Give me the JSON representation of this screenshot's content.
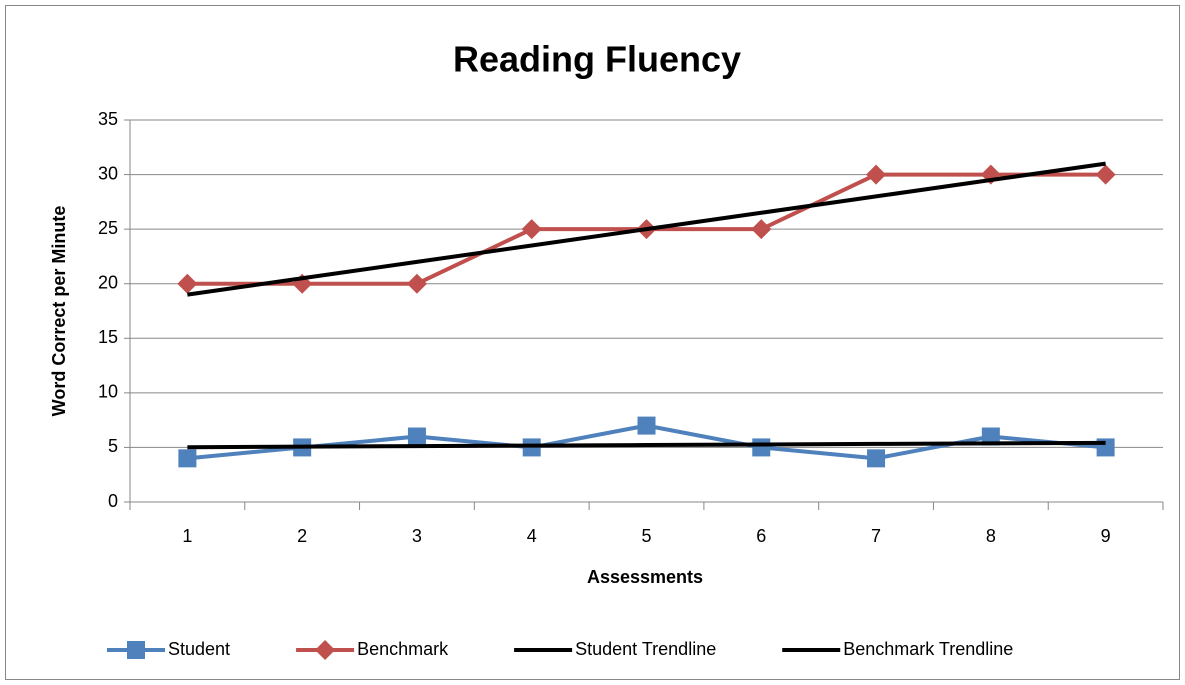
{
  "chart_data": {
    "type": "line",
    "title": "Reading Fluency",
    "x_label": "Assessments",
    "y_label": "Word Correct per Minute",
    "categories": [
      "1",
      "2",
      "3",
      "4",
      "5",
      "6",
      "7",
      "8",
      "9"
    ],
    "series": [
      {
        "name": "Student",
        "color": "#4f81bd",
        "marker": "square",
        "values": [
          4,
          5,
          6,
          5,
          7,
          5,
          4,
          6,
          5
        ]
      },
      {
        "name": "Benchmark",
        "color": "#c0504d",
        "marker": "diamond",
        "values": [
          20,
          20,
          20,
          25,
          25,
          25,
          30,
          30,
          30
        ]
      },
      {
        "name": "Student Trendline",
        "color": "#000000",
        "marker": "none",
        "values": [
          5.02,
          5.07,
          5.12,
          5.17,
          5.22,
          5.27,
          5.32,
          5.37,
          5.42
        ]
      },
      {
        "name": "Benchmark Trendline",
        "color": "#000000",
        "marker": "none",
        "values": [
          19,
          20.5,
          22,
          23.5,
          25,
          26.5,
          28,
          29.5,
          31
        ]
      }
    ],
    "ylim": [
      0,
      35
    ],
    "yticks": [
      0,
      5,
      10,
      15,
      20,
      25,
      30,
      35
    ],
    "grid": true,
    "legend": "bottom"
  }
}
